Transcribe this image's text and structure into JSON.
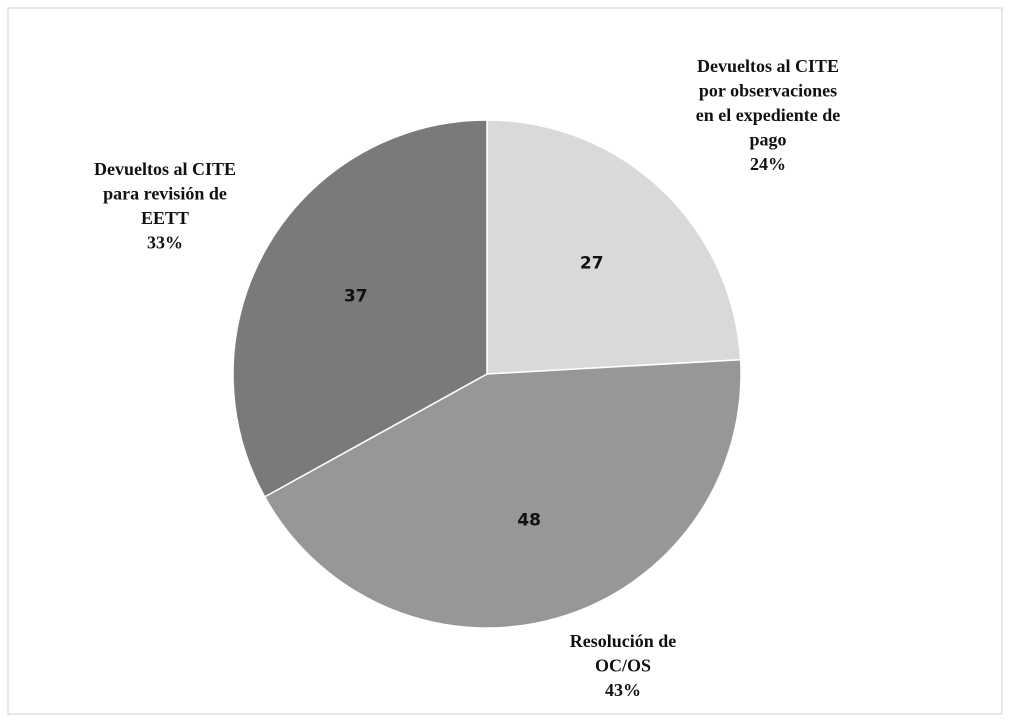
{
  "chart_data": {
    "type": "pie",
    "categories": [
      [
        "Devueltos al CITE",
        "por observaciones",
        "en el expediente de",
        "pago"
      ],
      [
        "Resolución de",
        "OC/OS"
      ],
      [
        "Devueltos al CITE",
        "para revisión de",
        "EETT"
      ]
    ],
    "values": [
      27,
      48,
      37
    ],
    "percent_labels": [
      "24%",
      "43%",
      "33%"
    ],
    "colors": [
      "#d9d9d9",
      "#979797",
      "#7a7a7a"
    ]
  }
}
